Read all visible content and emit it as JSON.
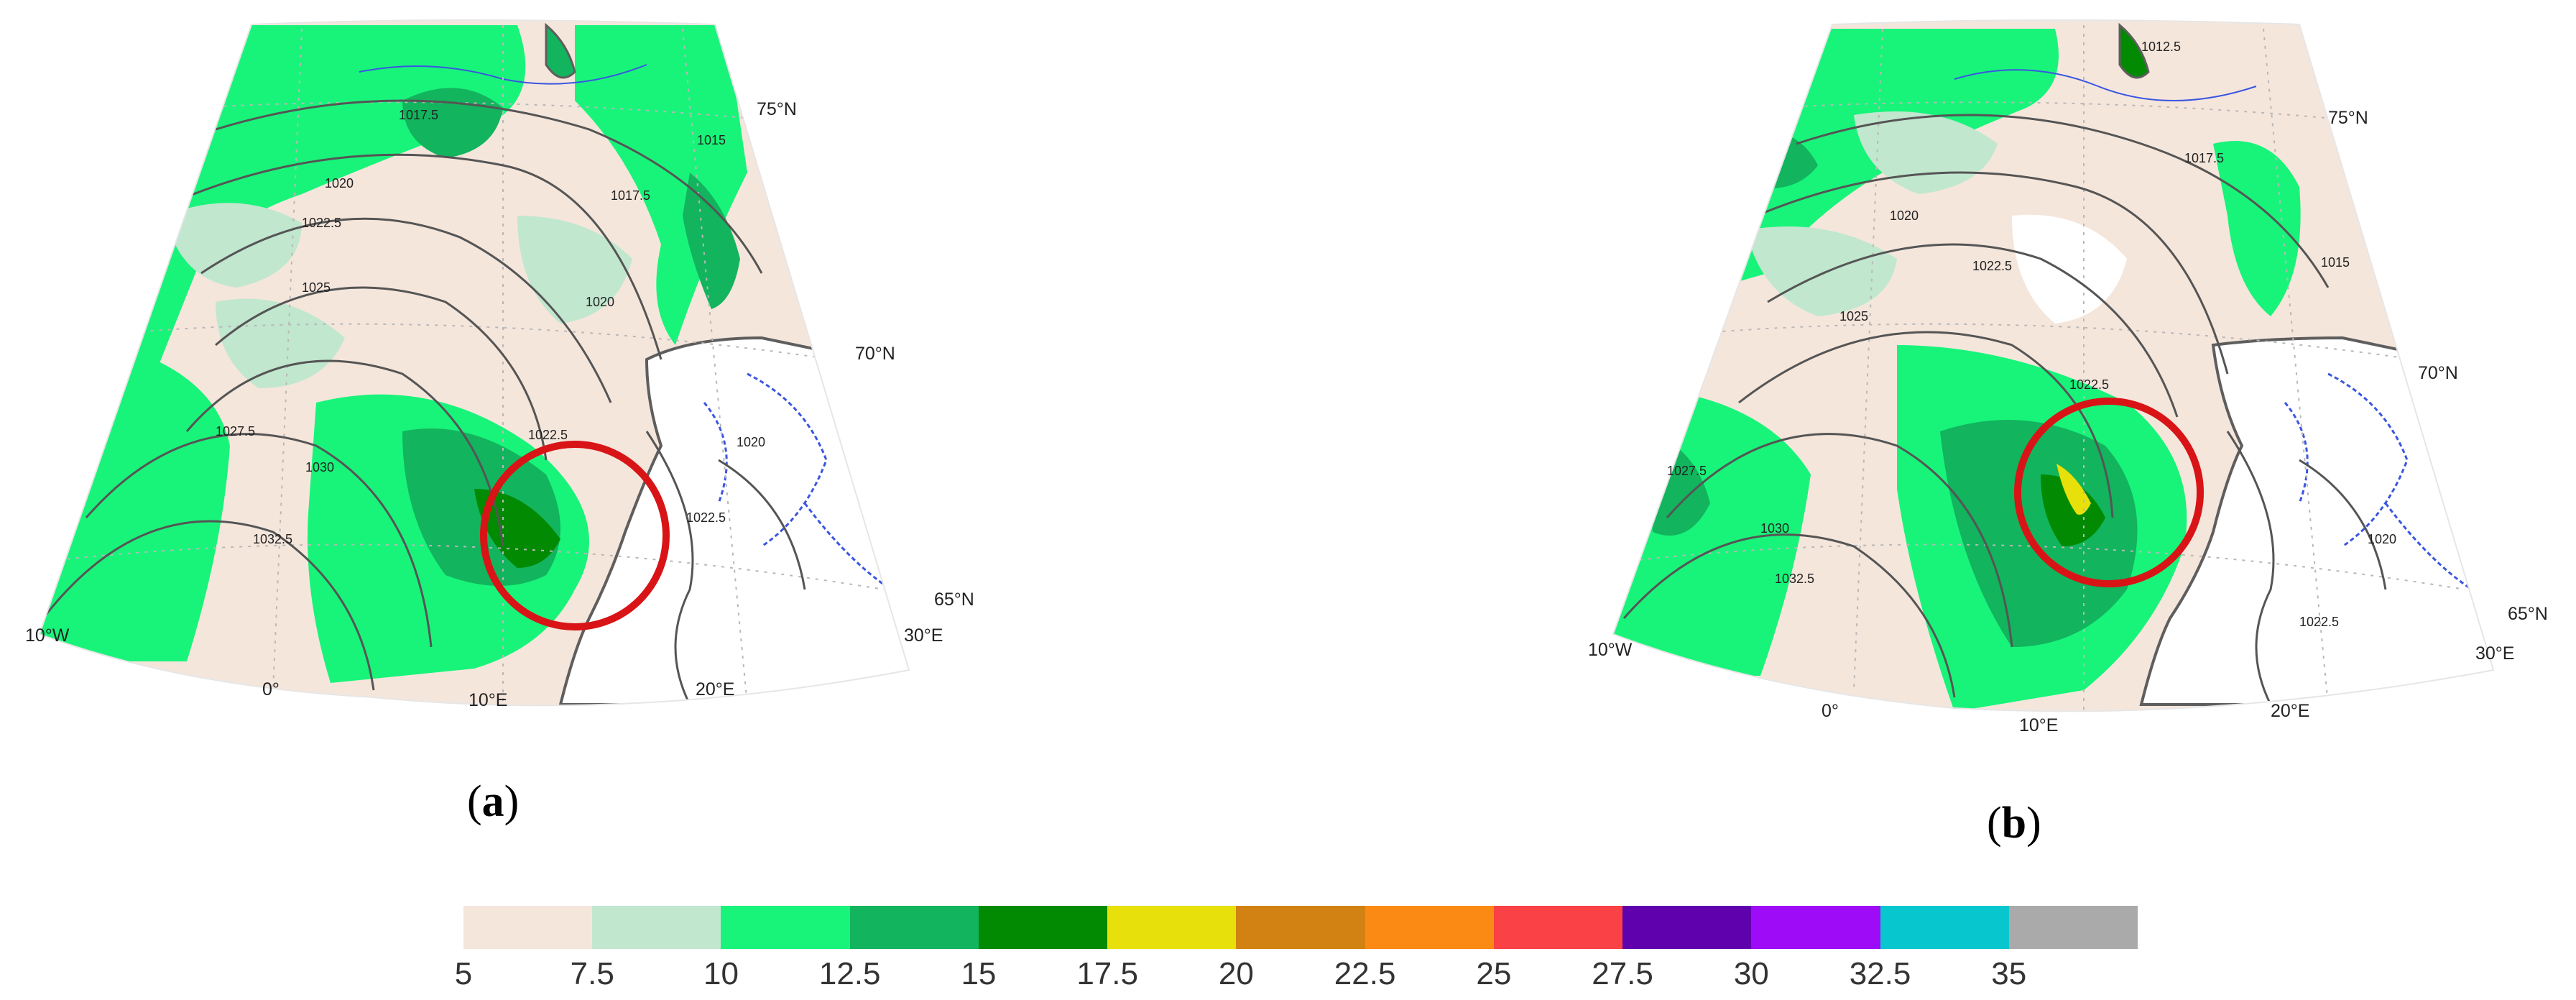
{
  "panels": [
    {
      "id": "a",
      "label_prefix": "(",
      "label_letter": "a",
      "label_suffix": ")",
      "latitude_labels": [
        "75°N",
        "70°N",
        "65°N"
      ],
      "longitude_labels": [
        "10°W",
        "0°",
        "10°E",
        "20°E",
        "30°E"
      ],
      "isobar_labels": [
        "1017.5",
        "1015",
        "1017.5",
        "1020",
        "1022.5",
        "1025",
        "1020",
        "1027.5",
        "1030",
        "1032.5",
        "1022.5",
        "1020",
        "1022.5"
      ],
      "highlight_circle": "red"
    },
    {
      "id": "b",
      "label_prefix": "(",
      "label_letter": "b",
      "label_suffix": ")",
      "latitude_labels": [
        "75°N",
        "70°N",
        "65°N"
      ],
      "longitude_labels": [
        "10°W",
        "0°",
        "10°E",
        "20°E",
        "30°E"
      ],
      "isobar_labels": [
        "1012.5",
        "1017.5",
        "1015",
        "1020",
        "1022.5",
        "1025",
        "1027.5",
        "1030",
        "1032.5",
        "1022.5",
        "1020",
        "1022.5"
      ],
      "highlight_circle": "red"
    }
  ],
  "colorbar": {
    "tick_labels": [
      "5",
      "7.5",
      "10",
      "12.5",
      "15",
      "17.5",
      "20",
      "22.5",
      "25",
      "27.5",
      "30",
      "32.5",
      "35"
    ],
    "colors": [
      "#f5e6dc",
      "#c1e7cf",
      "#18f47a",
      "#12b45e",
      "#028a02",
      "#e8e00a",
      "#d18212",
      "#fb8a14",
      "#f94146",
      "#5f02ad",
      "#9e0bf6",
      "#08c6ce",
      "#aaaaaa"
    ]
  },
  "colors": {
    "land": "#ffffff",
    "coastline": "#5e5e5e",
    "rivers_borders": "#3a56e0",
    "isobars": "#555555",
    "circle": "#d81416",
    "graticule": "#b8b8b8"
  }
}
